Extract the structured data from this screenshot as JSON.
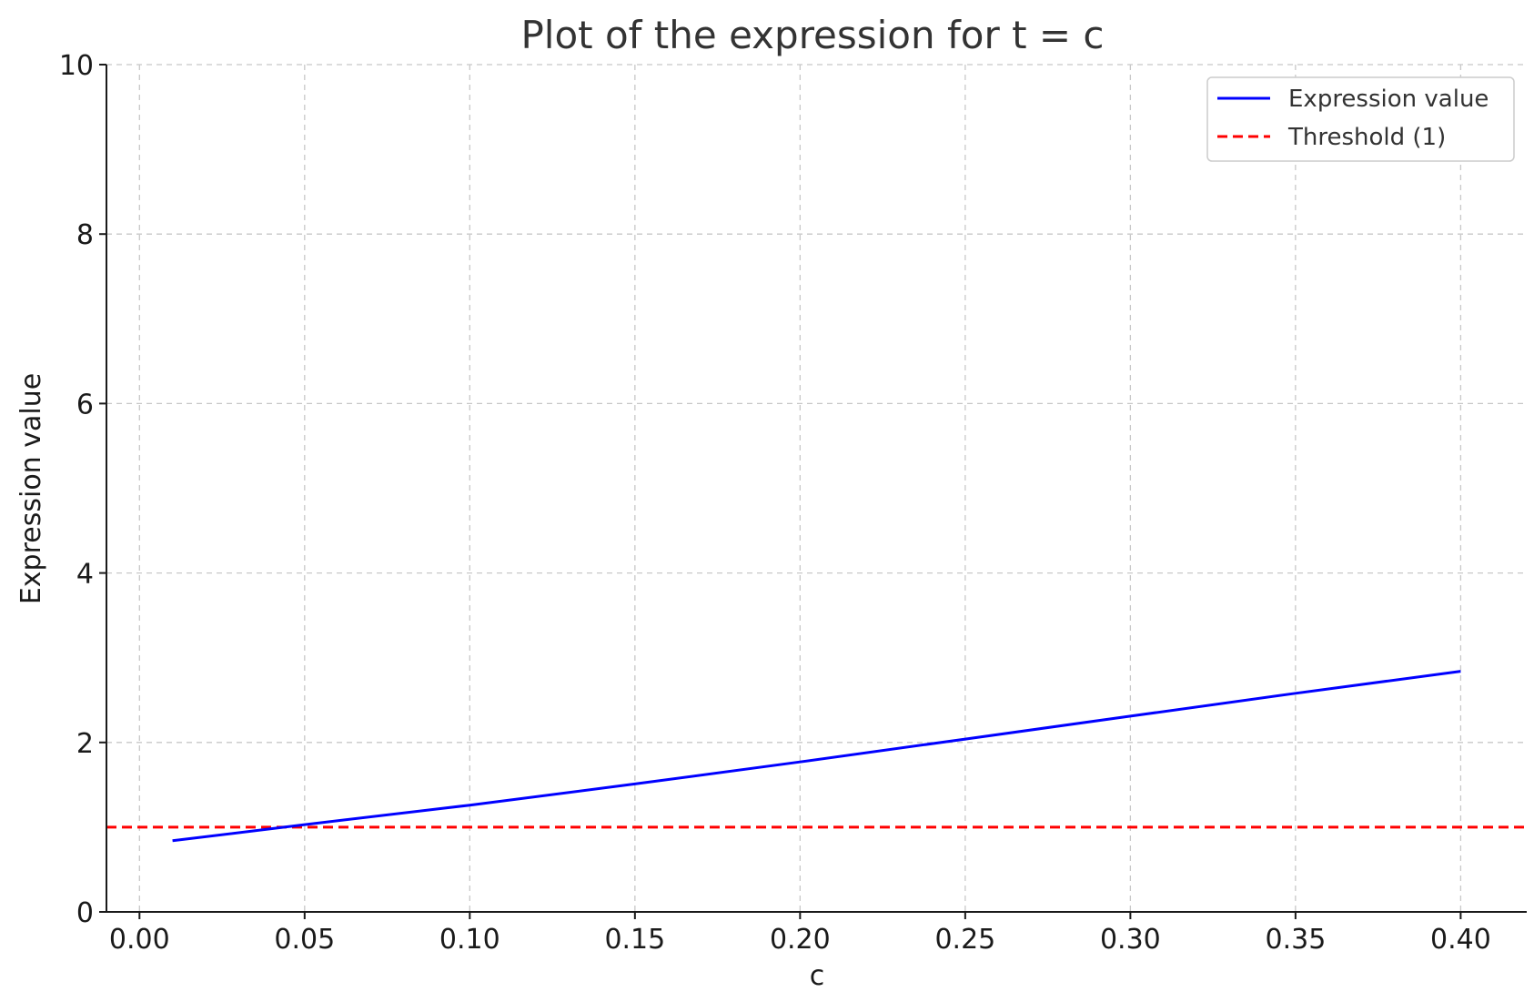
{
  "chart_data": {
    "type": "line",
    "title": "Plot of the expression for t = c",
    "xlabel": "c",
    "ylabel": "Expression value",
    "xlim": [
      -0.01,
      0.42
    ],
    "ylim": [
      0,
      10
    ],
    "x_ticks": [
      0.0,
      0.05,
      0.1,
      0.15,
      0.2,
      0.25,
      0.3,
      0.35,
      0.4
    ],
    "x_tick_labels": [
      "0.00",
      "0.05",
      "0.10",
      "0.15",
      "0.20",
      "0.25",
      "0.30",
      "0.35",
      "0.40"
    ],
    "y_ticks": [
      0,
      2,
      4,
      6,
      8,
      10
    ],
    "y_tick_labels": [
      "0",
      "2",
      "4",
      "6",
      "8",
      "10"
    ],
    "grid": true,
    "legend_position": "top-right",
    "series": [
      {
        "name": "Expression value",
        "color": "#0000ff",
        "style": "solid",
        "x": [
          0.01,
          0.05,
          0.1,
          0.15,
          0.2,
          0.25,
          0.3,
          0.35,
          0.4
        ],
        "y": [
          0.84,
          1.03,
          1.26,
          1.51,
          1.77,
          2.04,
          2.31,
          2.58,
          2.84
        ]
      },
      {
        "name": "Threshold (1)",
        "color": "#ff0000",
        "style": "dashed",
        "y_constant": 1
      }
    ]
  }
}
